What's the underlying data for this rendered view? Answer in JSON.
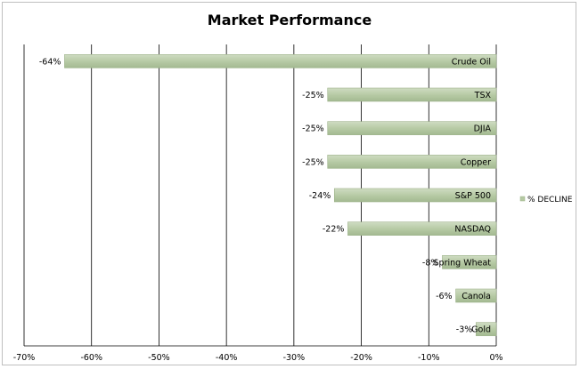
{
  "chart_data": {
    "type": "bar",
    "orientation": "horizontal",
    "title": "Market Performance",
    "categories": [
      "Crude Oil",
      "TSX",
      "DJIA",
      "Copper",
      "S&P 500",
      "NASDAQ",
      "Spring Wheat",
      "Canola",
      "Gold"
    ],
    "series": [
      {
        "name": "% DECLINE",
        "values": [
          -64,
          -25,
          -25,
          -25,
          -24,
          -22,
          -8,
          -6,
          -3
        ],
        "color": "#b5c9a3"
      }
    ],
    "data_labels": [
      "-64%",
      "-25%",
      "-25%",
      "-25%",
      "-24%",
      "-22%",
      "-8%",
      "-6%",
      "-3%"
    ],
    "xlim": [
      -70,
      0
    ],
    "x_ticks": [
      -70,
      -60,
      -50,
      -40,
      -30,
      -20,
      -10,
      0
    ],
    "x_tick_labels": [
      "-70%",
      "-60%",
      "-50%",
      "-40%",
      "-30%",
      "-20%",
      "-10%",
      "0%"
    ],
    "grid": true,
    "legend_position": "right",
    "colors": {
      "bar_fill": "#b5c9a3",
      "bar_edge": "#9eb38b",
      "grid": "#000000",
      "frame": "#bfbfbf"
    }
  }
}
